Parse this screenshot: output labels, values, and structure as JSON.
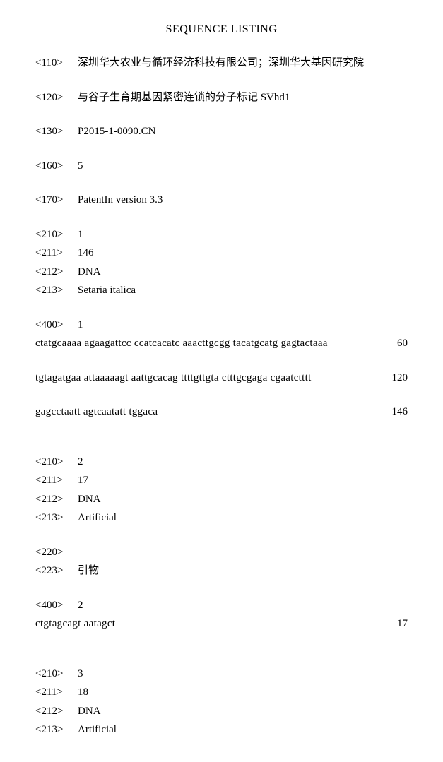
{
  "title": "SEQUENCE LISTING",
  "fields": {
    "f110": {
      "tag": "<110>",
      "value": "深圳华大农业与循环经济科技有限公司；深圳华大基因研究院"
    },
    "f120": {
      "tag": "<120>",
      "value": "与谷子生育期基因紧密连锁的分子标记 SVhd1"
    },
    "f130": {
      "tag": "<130>",
      "value": "P2015-1-0090.CN"
    },
    "f160": {
      "tag": "<160>",
      "value": "5"
    },
    "f170": {
      "tag": "<170>",
      "value": "PatentIn version 3.3"
    },
    "seq1": {
      "f210": {
        "tag": "<210>",
        "value": "1"
      },
      "f211": {
        "tag": "<211>",
        "value": "146"
      },
      "f212": {
        "tag": "<212>",
        "value": "DNA"
      },
      "f213": {
        "tag": "<213>",
        "value": "Setaria italica"
      },
      "f400": {
        "tag": "<400>",
        "value": "1"
      },
      "lines": [
        {
          "seq": "ctatgcaaaa agaagattcc ccatcacatc aaacttgcgg tacatgcatg gagtactaaa",
          "num": "60"
        },
        {
          "seq": "tgtagatgaa attaaaaagt aattgcacag ttttgttgta ctttgcgaga cgaatctttt",
          "num": "120"
        },
        {
          "seq": "gagcctaatt agtcaatatt tggaca",
          "num": "146"
        }
      ]
    },
    "seq2": {
      "f210": {
        "tag": "<210>",
        "value": "2"
      },
      "f211": {
        "tag": "<211>",
        "value": "17"
      },
      "f212": {
        "tag": "<212>",
        "value": "DNA"
      },
      "f213": {
        "tag": "<213>",
        "value": "Artificial"
      },
      "f220": {
        "tag": "<220>",
        "value": ""
      },
      "f223": {
        "tag": "<223>",
        "value": "引物"
      },
      "f400": {
        "tag": "<400>",
        "value": "2"
      },
      "lines": [
        {
          "seq": "ctgtagcagt aatagct",
          "num": "17"
        }
      ]
    },
    "seq3": {
      "f210": {
        "tag": "<210>",
        "value": "3"
      },
      "f211": {
        "tag": "<211>",
        "value": "18"
      },
      "f212": {
        "tag": "<212>",
        "value": "DNA"
      },
      "f213": {
        "tag": "<213>",
        "value": "Artificial"
      }
    }
  }
}
